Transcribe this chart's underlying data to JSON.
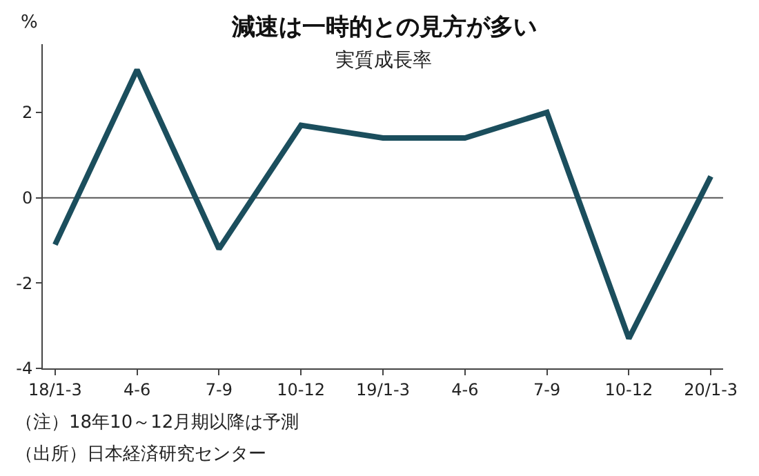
{
  "chart_data": {
    "type": "line",
    "title": "減速は一時的との見方が多い",
    "subtitle": "実質成長率",
    "ylabel": "%",
    "categories": [
      "18/1-3",
      "4-6",
      "7-9",
      "10-12",
      "19/1-3",
      "4-6",
      "7-9",
      "10-12",
      "20/1-3"
    ],
    "series": [
      {
        "color": "#1b4e5d",
        "values": [
          -1.1,
          3.0,
          -1.2,
          1.7,
          1.4,
          1.4,
          2.0,
          -3.3,
          0.5
        ]
      }
    ],
    "ylim": [
      -4,
      3.6
    ],
    "yticks": [
      -4,
      -2,
      0,
      2
    ],
    "ref_lines": [
      {
        "axis": "y",
        "value": 0,
        "color": "#555555"
      }
    ],
    "grid": false,
    "marker": "none",
    "line_style": "solid",
    "annotations": [
      "（注）18年10～12月期以降は予測",
      "（出所）日本経済研究センター"
    ]
  }
}
